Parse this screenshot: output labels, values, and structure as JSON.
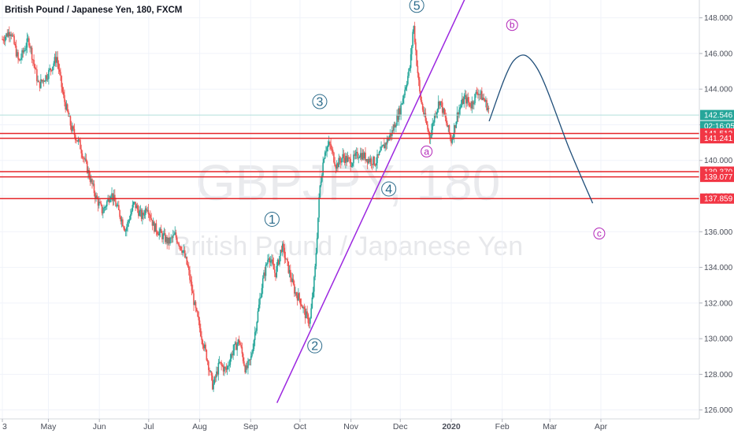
{
  "chart_data": {
    "type": "candlestick",
    "title": "British Pound / Japanese Yen, 180, FXCM",
    "watermark": {
      "symbol": "GBPJPY, 180",
      "name": "British Pound / Japanese Yen"
    },
    "ylim": [
      125.5,
      149.0
    ],
    "yticks": [
      126,
      128,
      130,
      132,
      134,
      136,
      138,
      140,
      142,
      144,
      146,
      148
    ],
    "ytick_labels": [
      "126.000",
      "128.000",
      "130.000",
      "132.000",
      "134.000",
      "136.000",
      "138.000",
      "140.000",
      "142.000",
      "144.000",
      "146.000",
      "148.000"
    ],
    "xticks": [
      {
        "label": "3",
        "t": 0
      },
      {
        "label": "May",
        "t": 28
      },
      {
        "label": "Jun",
        "t": 59
      },
      {
        "label": "Jul",
        "t": 89
      },
      {
        "label": "Aug",
        "t": 120
      },
      {
        "label": "Sep",
        "t": 151
      },
      {
        "label": "Oct",
        "t": 181
      },
      {
        "label": "Nov",
        "t": 212
      },
      {
        "label": "Dec",
        "t": 242
      },
      {
        "label": "2020",
        "t": 273
      },
      {
        "label": "Feb",
        "t": 304
      },
      {
        "label": "Mar",
        "t": 333
      },
      {
        "label": "Apr",
        "t": 364
      }
    ],
    "path_points": [
      [
        0,
        146.8
      ],
      [
        5,
        147.3
      ],
      [
        10,
        145.5
      ],
      [
        16,
        146.8
      ],
      [
        22,
        144.2
      ],
      [
        28,
        144.9
      ],
      [
        33,
        145.8
      ],
      [
        37,
        143.6
      ],
      [
        42,
        141.8
      ],
      [
        47,
        140.9
      ],
      [
        52,
        139.4
      ],
      [
        57,
        137.9
      ],
      [
        61,
        137.1
      ],
      [
        66,
        138.2
      ],
      [
        70,
        137.3
      ],
      [
        75,
        136.1
      ],
      [
        80,
        137.6
      ],
      [
        85,
        136.8
      ],
      [
        88,
        137.5
      ],
      [
        92,
        136.3
      ],
      [
        96,
        135.9
      ],
      [
        101,
        135.4
      ],
      [
        105,
        135.8
      ],
      [
        110,
        134.9
      ],
      [
        113,
        133.9
      ],
      [
        117,
        131.8
      ],
      [
        121,
        130.2
      ],
      [
        125,
        128.7
      ],
      [
        128,
        127.3
      ],
      [
        132,
        128.6
      ],
      [
        136,
        128.2
      ],
      [
        140,
        129.3
      ],
      [
        144,
        129.9
      ],
      [
        148,
        128.2
      ],
      [
        151,
        128.8
      ],
      [
        155,
        131.2
      ],
      [
        158,
        133.1
      ],
      [
        162,
        134.7
      ],
      [
        166,
        133.6
      ],
      [
        170,
        135.2
      ],
      [
        174,
        133.9
      ],
      [
        178,
        132.6
      ],
      [
        181,
        132.2
      ],
      [
        184,
        131.4
      ],
      [
        187,
        130.9
      ],
      [
        190,
        133.6
      ],
      [
        193,
        138.4
      ],
      [
        196,
        140.6
      ],
      [
        199,
        140.9
      ],
      [
        203,
        139.7
      ],
      [
        207,
        140.2
      ],
      [
        212,
        139.9
      ],
      [
        217,
        140.4
      ],
      [
        222,
        140.1
      ],
      [
        227,
        139.9
      ],
      [
        232,
        140.8
      ],
      [
        237,
        141.6
      ],
      [
        242,
        142.9
      ],
      [
        245,
        144.1
      ],
      [
        248,
        145.3
      ],
      [
        250,
        147.7
      ],
      [
        252,
        145.5
      ],
      [
        254,
        143.6
      ],
      [
        257,
        142.3
      ],
      [
        260,
        141.3
      ],
      [
        263,
        142.6
      ],
      [
        266,
        143.4
      ],
      [
        270,
        142.1
      ],
      [
        273,
        141.1
      ],
      [
        277,
        142.7
      ],
      [
        281,
        143.5
      ],
      [
        285,
        143.1
      ],
      [
        289,
        143.9
      ],
      [
        293,
        143.4
      ],
      [
        296,
        142.8
      ]
    ],
    "horizontal_levels": [
      141.512,
      141.241,
      139.37,
      139.077,
      137.859
    ],
    "current_price": 142.546,
    "countdown": "02:16:05",
    "trendline": [
      [
        167,
        126.4
      ],
      [
        285,
        149.8
      ]
    ],
    "forecast_curve": [
      [
        296,
        142.2
      ],
      [
        311,
        145.6
      ],
      [
        325,
        145.2
      ],
      [
        345,
        140.6
      ],
      [
        359,
        137.6
      ]
    ],
    "wave_labels": [
      {
        "label": "1",
        "t": 164,
        "y": 136.7,
        "group": "impulse"
      },
      {
        "label": "2",
        "t": 190,
        "y": 129.6,
        "group": "impulse"
      },
      {
        "label": "3",
        "t": 193,
        "y": 143.3,
        "group": "impulse"
      },
      {
        "label": "4",
        "t": 235,
        "y": 138.4,
        "group": "impulse"
      },
      {
        "label": "5",
        "t": 252,
        "y": 148.7,
        "group": "impulse"
      },
      {
        "label": "a",
        "t": 258,
        "y": 140.5,
        "group": "correction"
      },
      {
        "label": "b",
        "t": 310,
        "y": 147.6,
        "group": "correction"
      },
      {
        "label": "c",
        "t": 363,
        "y": 135.9,
        "group": "correction"
      }
    ]
  },
  "colors": {
    "up": "#26a69a",
    "down": "#ef5350",
    "level": "#e5262a",
    "trendline": "#9c27e0",
    "forecast": "#1f4e79",
    "price_badge": "#26a69a",
    "level_badge": "#f23645",
    "countdown_badge": "#26a69a"
  }
}
